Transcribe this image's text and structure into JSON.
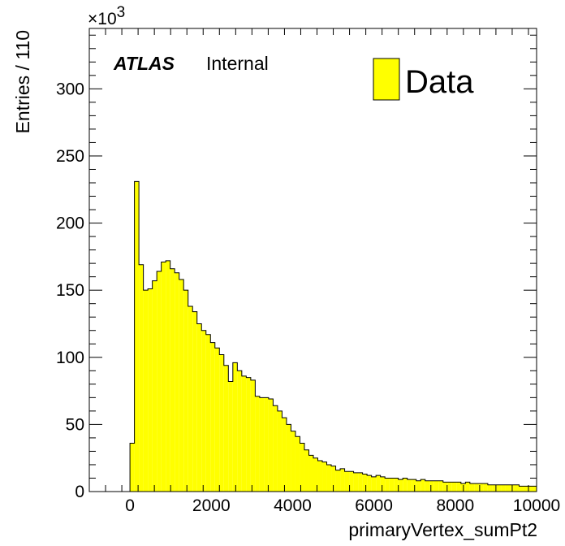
{
  "chart_data": {
    "type": "bar",
    "subtype": "histogram",
    "xlabel": "primaryVertex_sumPt2",
    "ylabel": "Entries / 110",
    "y_multiplier": "×10",
    "y_multiplier_exponent": "3",
    "xlim": [
      -1000,
      10000
    ],
    "ylim": [
      0,
      345
    ],
    "x_ticks": [
      0,
      2000,
      4000,
      6000,
      8000,
      10000
    ],
    "x_tick_labels": [
      "0",
      "2000",
      "4000",
      "6000",
      "8000",
      "10000"
    ],
    "y_ticks": [
      0,
      50,
      100,
      150,
      200,
      250,
      300
    ],
    "y_tick_labels": [
      "0",
      "50",
      "100",
      "150",
      "200",
      "250",
      "300"
    ],
    "bin_start": 0,
    "bin_width": 110,
    "values": [
      36,
      231,
      169,
      150,
      151,
      157,
      164,
      171,
      172,
      166,
      163,
      158,
      150,
      138,
      134,
      125,
      120,
      117,
      111,
      107,
      102,
      94,
      82,
      96,
      90,
      86,
      85,
      83,
      71,
      70,
      70,
      69,
      64,
      60,
      55,
      50,
      45,
      41,
      36,
      31,
      27,
      25,
      23,
      22,
      20,
      19,
      16,
      17,
      15,
      15,
      14,
      14,
      13,
      12,
      11,
      12,
      11,
      10,
      10,
      10,
      9,
      10,
      9,
      9,
      8,
      9,
      8,
      8,
      8,
      8,
      7,
      7,
      7,
      7,
      6,
      7,
      6,
      6,
      6,
      6,
      5,
      5,
      5,
      5,
      5,
      5,
      5,
      4,
      4,
      4,
      4
    ],
    "series": [
      {
        "name": "Data",
        "color": "#ffff00",
        "edge_color": "#000000"
      }
    ],
    "legend": {
      "label": "Data",
      "placement": "top-right"
    },
    "annotation": {
      "bold_italic": "ATLAS",
      "regular": "Internal"
    },
    "grid": false
  }
}
